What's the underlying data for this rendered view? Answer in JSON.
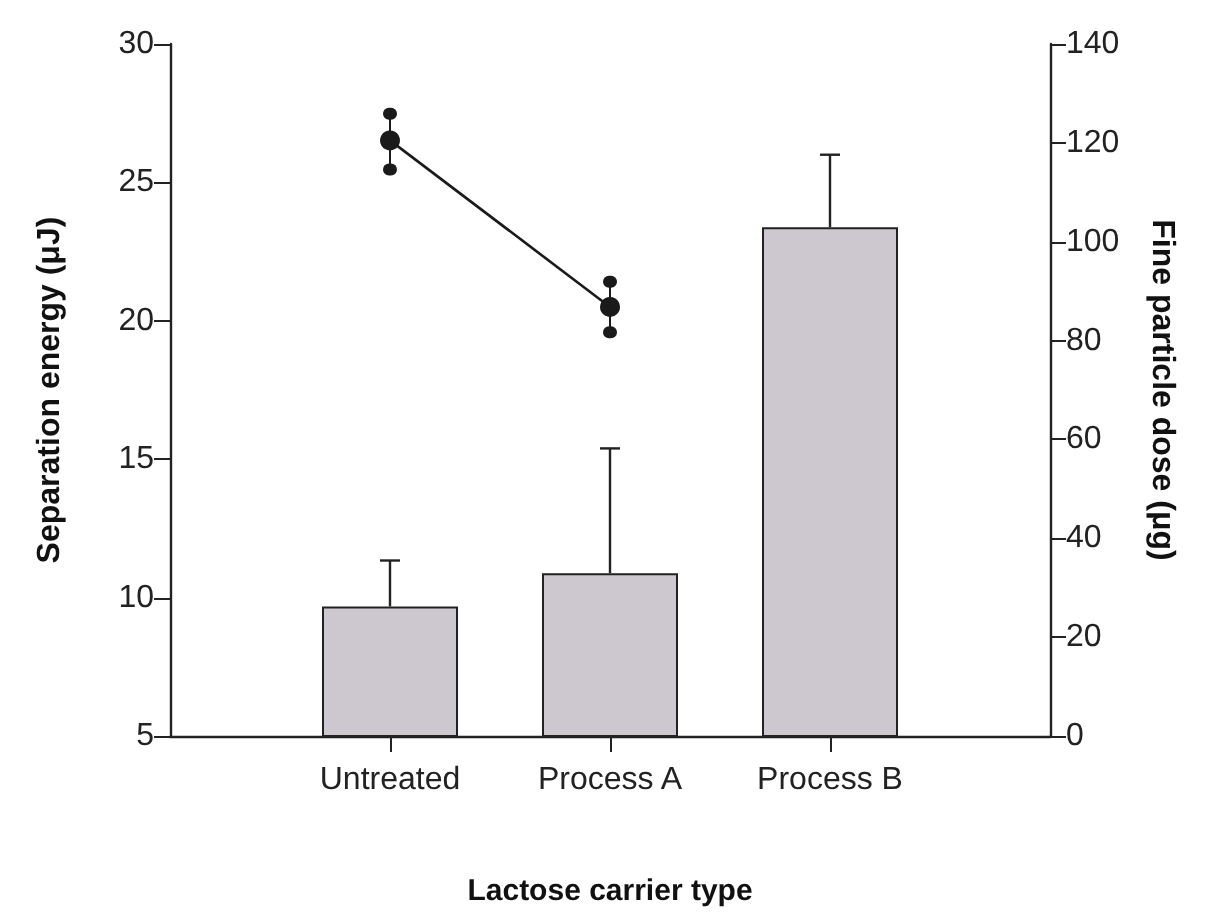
{
  "chart_data": {
    "type": "bar",
    "xlabel": "Lactose carrier type",
    "ylabel": "Separation energy (μJ)",
    "y2label": "Fine particle dose (μg)",
    "categories": [
      "Untreated",
      "Process A",
      "Process B"
    ],
    "series": [
      {
        "color": "#cdc8cf",
        "values": [
          9.68,
          10.88,
          23.38
        ],
        "errors": [
          [
            9.68,
            11.34
          ],
          [
            10.88,
            15.39
          ],
          [
            23.38,
            26.0
          ]
        ]
      },
      {
        "type": "line",
        "axis": "y2",
        "color": "#1a1a1a",
        "values": [
          120.5,
          86.8,
          null
        ],
        "errors": [
          [
            114.6,
            125.9
          ],
          [
            81.7,
            91.9
          ],
          null
        ],
        "marker": "circle",
        "line_style": "solid"
      }
    ],
    "ylim": [
      5,
      30
    ],
    "yticks": [
      5,
      10,
      15,
      20,
      25,
      30
    ],
    "y2lim": [
      0,
      140
    ],
    "y2ticks": [
      0,
      20,
      40,
      60,
      80,
      100,
      120,
      140
    ],
    "grid": false
  }
}
